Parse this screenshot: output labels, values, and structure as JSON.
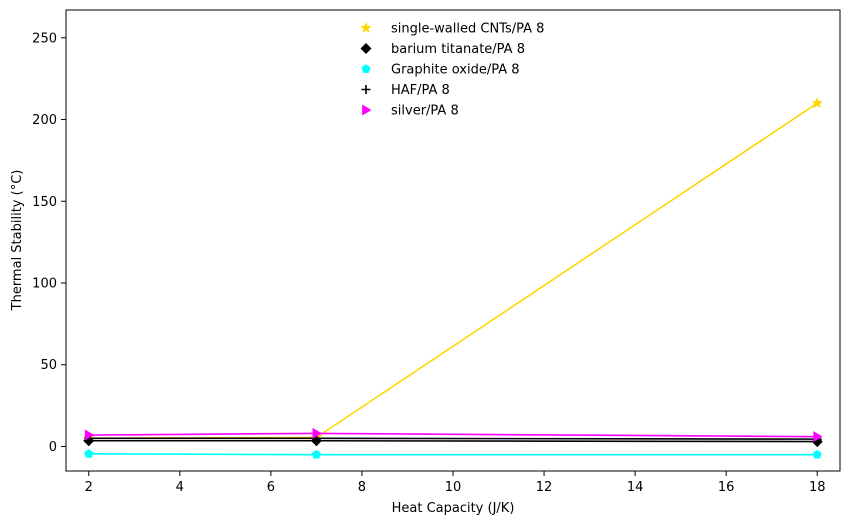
{
  "chart_data": {
    "type": "line",
    "title": "",
    "xlabel": "Heat Capacity (J/K)",
    "ylabel": "Thermal Stability (°C)",
    "x": [
      2,
      7,
      18
    ],
    "xlim": [
      1.5,
      18.5
    ],
    "ylim": [
      -15,
      267
    ],
    "xticks": [
      2,
      4,
      6,
      8,
      10,
      12,
      14,
      16,
      18
    ],
    "yticks": [
      0,
      50,
      100,
      150,
      200,
      250
    ],
    "grid": false,
    "legend_position": "top-center",
    "series": [
      {
        "name": "single-walled CNTs/PA 8",
        "color": "#FFD700",
        "marker": "star",
        "values": [
          5.0,
          5.5,
          210.0
        ]
      },
      {
        "name": "barium titanate/PA 8",
        "color": "#000000",
        "marker": "diamond",
        "values": [
          3.5,
          3.5,
          3.0
        ]
      },
      {
        "name": "Graphite oxide/PA 8",
        "color": "#00FFFF",
        "marker": "pentagon",
        "values": [
          -4.5,
          -5.0,
          -5.0
        ]
      },
      {
        "name": "HAF/PA 8",
        "color": "#000000",
        "marker": "plus",
        "values": [
          5.0,
          5.0,
          4.5
        ]
      },
      {
        "name": "silver/PA 8",
        "color": "#FF00FF",
        "marker": "triangle-right",
        "values": [
          7.0,
          8.0,
          6.0
        ]
      }
    ]
  }
}
